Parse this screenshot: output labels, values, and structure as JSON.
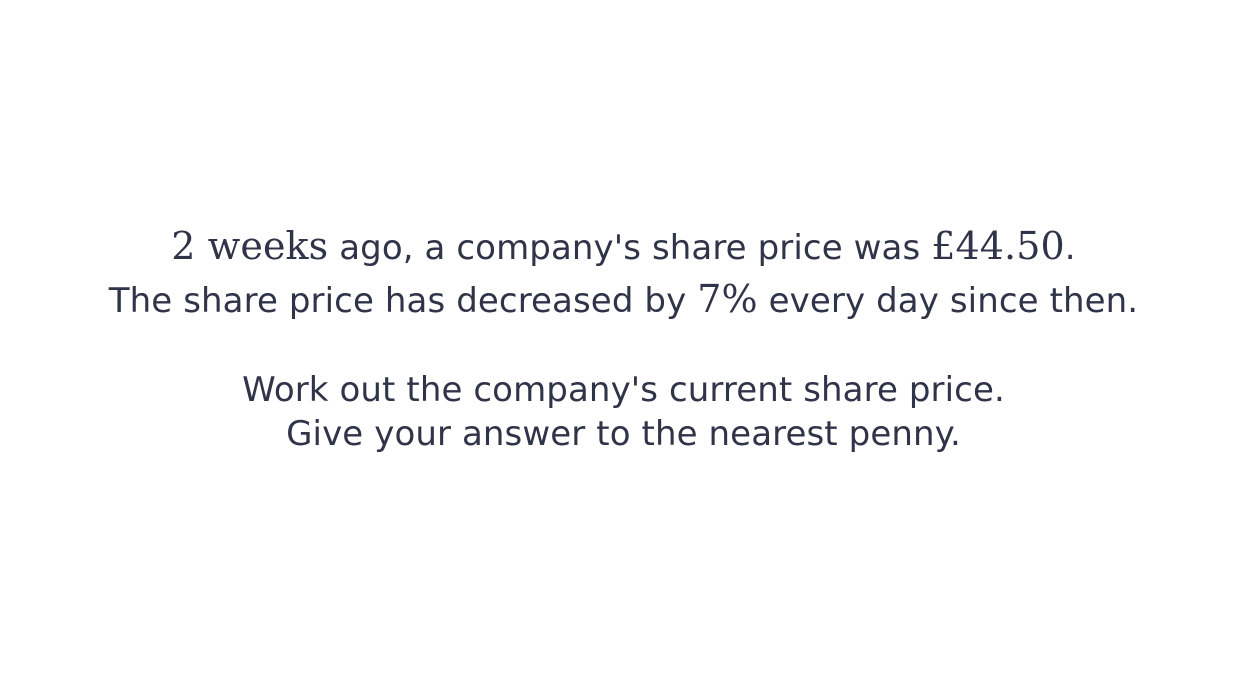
{
  "question": {
    "line1": {
      "math_time": "2 weeks",
      "text_a": " ago, a company's share price was ",
      "math_price": "£44.50",
      "text_b": "."
    },
    "line2": {
      "text_a": "The share price has decreased by ",
      "math_percent": "7%",
      "text_b": " every day since then."
    },
    "line3": "Work out the company's current share price.",
    "line4": "Give your answer to the nearest penny."
  },
  "colors": {
    "text": "#2f3448",
    "background": "#ffffff"
  }
}
